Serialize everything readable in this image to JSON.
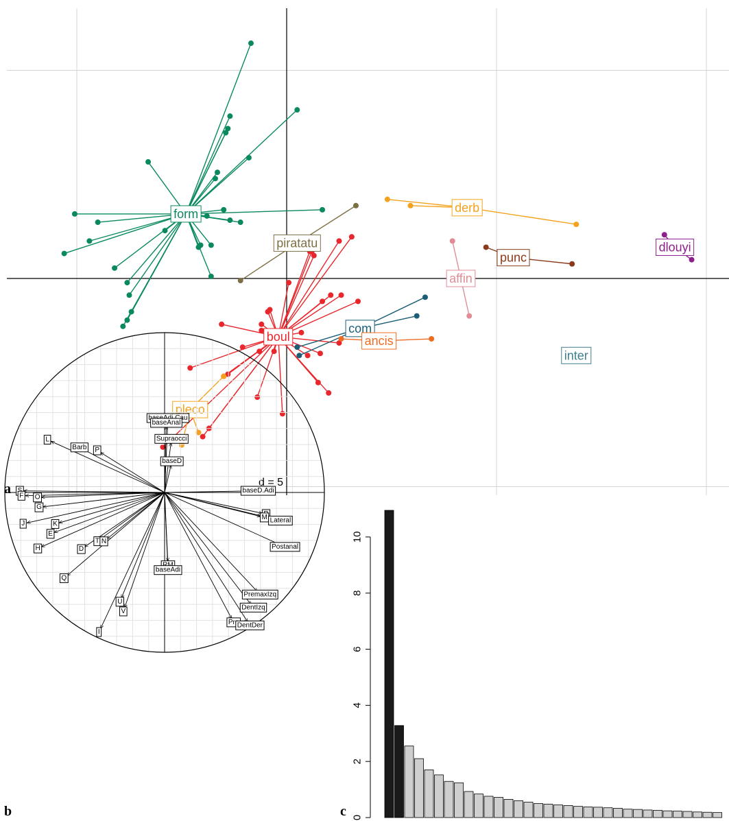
{
  "panel_letters": {
    "a": "a",
    "b": "b",
    "c": "c"
  },
  "chart_data": [
    {
      "panel": "a",
      "type": "scatter",
      "scale_label": "d = 5",
      "x_grid": [
        -10,
        0,
        10,
        20
      ],
      "y_grid": [
        10,
        0,
        -10
      ],
      "axes_lines": true,
      "groups": [
        {
          "name": "form",
          "color": "#0a8a5c",
          "centroid": [
            -4.8,
            3.1
          ],
          "label_box_color": "#0a8a5c",
          "points": [
            [
              -1.7,
              11.3
            ],
            [
              -2.7,
              7.8
            ],
            [
              0.5,
              8.1
            ],
            [
              -2.8,
              7.2
            ],
            [
              -2.9,
              7.0
            ],
            [
              -1.8,
              5.8
            ],
            [
              -3.3,
              5.1
            ],
            [
              -6.6,
              5.6
            ],
            [
              -3.4,
              4.8
            ],
            [
              -3.0,
              3.3
            ],
            [
              -10.1,
              3.1
            ],
            [
              1.7,
              3.3
            ],
            [
              -3.8,
              3.0
            ],
            [
              -2.7,
              2.8
            ],
            [
              -2.2,
              2.7
            ],
            [
              -9.0,
              2.7
            ],
            [
              -5.8,
              2.3
            ],
            [
              -9.4,
              1.8
            ],
            [
              -10.6,
              1.2
            ],
            [
              -4.1,
              1.6
            ],
            [
              -8.2,
              0.5
            ],
            [
              -4.2,
              1.5
            ],
            [
              -3.6,
              1.6
            ],
            [
              -7.6,
              -0.2
            ],
            [
              -3.6,
              0.1
            ],
            [
              -7.5,
              -0.8
            ],
            [
              -7.4,
              -1.6
            ],
            [
              -7.6,
              -2.0
            ],
            [
              -7.8,
              -2.3
            ]
          ]
        },
        {
          "name": "piratatu",
          "color": "#7d6f44",
          "centroid": [
            0.5,
            1.7
          ],
          "label_box_color": "#7d6f44",
          "points": [
            [
              3.3,
              3.5
            ],
            [
              -2.2,
              -0.1
            ]
          ]
        },
        {
          "name": "derb",
          "color": "#f4a21d",
          "centroid": [
            8.6,
            3.4
          ],
          "label_box_color": "#f4a21d",
          "points": [
            [
              4.8,
              3.8
            ],
            [
              5.9,
              3.5
            ],
            [
              13.8,
              2.6
            ]
          ]
        },
        {
          "name": "dlouyi",
          "color": "#8e1f8c",
          "centroid": [
            18.5,
            1.5
          ],
          "label_box_color": "#8e1f8c",
          "points": [
            [
              18.0,
              2.1
            ],
            [
              19.3,
              0.9
            ]
          ]
        },
        {
          "name": "punc",
          "color": "#8a3a1a",
          "centroid": [
            10.8,
            1.0
          ],
          "label_box_color": "#8a3a1a",
          "points": [
            [
              9.5,
              1.5
            ],
            [
              13.6,
              0.7
            ]
          ]
        },
        {
          "name": "affin",
          "color": "#e08c96",
          "centroid": [
            8.3,
            0.0
          ],
          "label_box_color": "#e08c96",
          "points": [
            [
              7.9,
              1.8
            ],
            [
              8.7,
              -1.8
            ]
          ]
        },
        {
          "name": "boul",
          "color": "#e8262c",
          "centroid": [
            -0.4,
            -2.8
          ],
          "label_box_color": "#e8262c",
          "points": [
            [
              3.1,
              2.0
            ],
            [
              2.5,
              1.8
            ],
            [
              1.2,
              1.3
            ],
            [
              1.1,
              1.3
            ],
            [
              1.3,
              1.1
            ],
            [
              0.1,
              -0.2
            ],
            [
              2.1,
              -0.8
            ],
            [
              2.6,
              -0.8
            ],
            [
              3.4,
              -1.1
            ],
            [
              1.7,
              -1.1
            ],
            [
              -0.8,
              -1.5
            ],
            [
              -0.9,
              -1.6
            ],
            [
              -1.2,
              -2.2
            ],
            [
              -3.1,
              -2.2
            ],
            [
              -1.2,
              -2.5
            ],
            [
              0.7,
              -2.6
            ],
            [
              2.5,
              -3.1
            ],
            [
              -2.1,
              -3.3
            ],
            [
              1.6,
              -3.6
            ],
            [
              -0.6,
              -3.5
            ],
            [
              -1.3,
              -3.5
            ],
            [
              1.0,
              -3.7
            ],
            [
              -4.6,
              -4.3
            ],
            [
              -2.8,
              -4.6
            ],
            [
              -3.0,
              -4.7
            ],
            [
              1.5,
              -5.0
            ],
            [
              2.0,
              -5.5
            ],
            [
              -1.4,
              -5.7
            ],
            [
              -0.2,
              -6.5
            ],
            [
              -3.7,
              -7.2
            ],
            [
              -4.0,
              -7.6
            ],
            [
              -5.9,
              -8.1
            ]
          ]
        },
        {
          "name": "com",
          "color": "#1b5e76",
          "centroid": [
            3.5,
            -2.4
          ],
          "label_box_color": "#1b5e76",
          "points": [
            [
              6.6,
              -0.9
            ],
            [
              6.2,
              -1.8
            ],
            [
              0.5,
              -3.3
            ],
            [
              0.6,
              -3.7
            ]
          ]
        },
        {
          "name": "ancis",
          "color": "#ef6c22",
          "centroid": [
            4.4,
            -3.0
          ],
          "label_box_color": "#ef6c22",
          "points": [
            [
              6.9,
              -2.9
            ],
            [
              2.6,
              -2.9
            ]
          ]
        },
        {
          "name": "pleco",
          "color": "#f4a21d",
          "centroid": [
            -4.6,
            -6.3
          ],
          "label_box_color": "#f4a21d",
          "points": [
            [
              -3.0,
              -4.7
            ],
            [
              -4.2,
              -7.4
            ],
            [
              -5.0,
              -8.0
            ]
          ]
        },
        {
          "name": "inter",
          "color": "#3f7f8c",
          "centroid": [
            13.8,
            -3.7
          ],
          "label_box_color": "#3f7f8c",
          "points": []
        }
      ]
    },
    {
      "panel": "b",
      "type": "scatter",
      "description": "correlation circle",
      "vectors": [
        {
          "label": "baseAdi.Cau",
          "x": 0.02,
          "y": 0.44
        },
        {
          "label": "baseAnal",
          "x": 0.01,
          "y": 0.41
        },
        {
          "label": "Supraocci",
          "x": 0.04,
          "y": 0.31
        },
        {
          "label": "baseD",
          "x": 0.04,
          "y": 0.17
        },
        {
          "label": "baseD.Adi",
          "x": 0.56,
          "y": 0.01
        },
        {
          "label": "L",
          "x": -0.71,
          "y": 0.32
        },
        {
          "label": "Barb",
          "x": -0.51,
          "y": 0.27
        },
        {
          "label": "P",
          "x": -0.4,
          "y": 0.25
        },
        {
          "label": "S",
          "x": -0.88,
          "y": 0.01
        },
        {
          "label": "F",
          "x": -0.87,
          "y": -0.02
        },
        {
          "label": "O",
          "x": -0.77,
          "y": -0.03
        },
        {
          "label": "G",
          "x": -0.76,
          "y": -0.09
        },
        {
          "label": "J",
          "x": -0.86,
          "y": -0.19
        },
        {
          "label": "K",
          "x": -0.66,
          "y": -0.19
        },
        {
          "label": "E",
          "x": -0.69,
          "y": -0.25
        },
        {
          "label": "H",
          "x": -0.77,
          "y": -0.34
        },
        {
          "label": "D",
          "x": -0.5,
          "y": -0.34
        },
        {
          "label": "T",
          "x": -0.4,
          "y": -0.29
        },
        {
          "label": "N",
          "x": -0.36,
          "y": -0.29
        },
        {
          "label": "Q",
          "x": -0.61,
          "y": -0.52
        },
        {
          "label": "I",
          "x": -0.4,
          "y": -0.85
        },
        {
          "label": "U",
          "x": -0.27,
          "y": -0.66
        },
        {
          "label": "V",
          "x": -0.25,
          "y": -0.72
        },
        {
          "label": "RM",
          "x": 0.02,
          "y": -0.43
        },
        {
          "label": "baseAdi",
          "x": 0.02,
          "y": -0.46
        },
        {
          "label": "R",
          "x": 0.61,
          "y": -0.13
        },
        {
          "label": "M",
          "x": 0.6,
          "y": -0.15
        },
        {
          "label": "Lateral",
          "x": 0.7,
          "y": -0.17
        },
        {
          "label": "Postanal",
          "x": 0.73,
          "y": -0.33
        },
        {
          "label": "PremaxIzq",
          "x": 0.58,
          "y": -0.62
        },
        {
          "label": "DentIzq",
          "x": 0.54,
          "y": -0.7
        },
        {
          "label": "Pre",
          "x": 0.42,
          "y": -0.79
        },
        {
          "label": "DentDer",
          "x": 0.52,
          "y": -0.81
        }
      ]
    },
    {
      "panel": "c",
      "type": "bar",
      "y_ticks": [
        "0",
        "2",
        "4",
        "6",
        "8",
        "10"
      ],
      "ylim": [
        0,
        11
      ],
      "values": [
        10.95,
        3.28,
        2.55,
        2.1,
        1.7,
        1.52,
        1.29,
        1.24,
        0.93,
        0.84,
        0.76,
        0.72,
        0.65,
        0.6,
        0.55,
        0.5,
        0.48,
        0.45,
        0.43,
        0.4,
        0.38,
        0.37,
        0.35,
        0.33,
        0.3,
        0.29,
        0.27,
        0.26,
        0.24,
        0.23,
        0.22,
        0.2,
        0.19,
        0.18,
        0.17,
        0.16,
        0.15,
        0.14,
        0.13,
        0.12,
        0.11,
        0.1
      ],
      "highlighted_count": 2,
      "highlight_color": "#1a1a1a",
      "bar_color": "#cfcfcf"
    }
  ]
}
